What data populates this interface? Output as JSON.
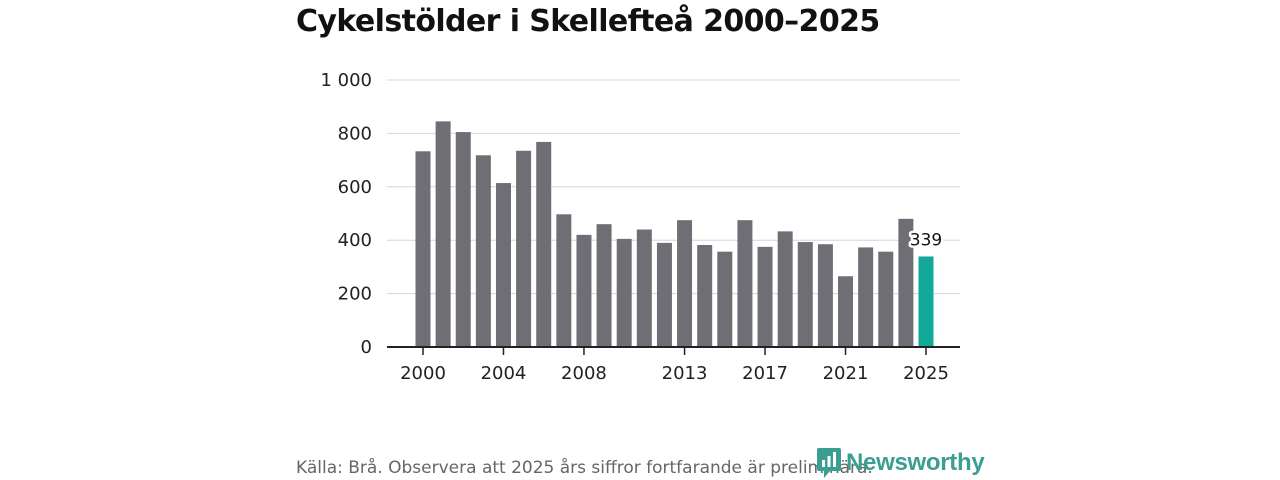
{
  "title": "Cykelstölder i Skellefteå 2000–2025",
  "source_note": "Källa: Brå. Observera att 2025 års siffror fortfarande är preliminära.",
  "brand": {
    "name": "Newsworthy",
    "icon": "newsworthy-logo-icon",
    "color": "#3a9e92"
  },
  "colors": {
    "bar": "#6f6e74",
    "highlight": "#12a89a",
    "grid": "#d6d6d6",
    "axis": "#222222"
  },
  "chart_data": {
    "type": "bar",
    "title": "Cykelstölder i Skellefteå 2000–2025",
    "xlabel": "",
    "ylabel": "",
    "categories": [
      "2000",
      "2001",
      "2002",
      "2003",
      "2004",
      "2005",
      "2006",
      "2007",
      "2008",
      "2009",
      "2010",
      "2011",
      "2012",
      "2013",
      "2014",
      "2015",
      "2016",
      "2017",
      "2018",
      "2019",
      "2020",
      "2021",
      "2022",
      "2023",
      "2024",
      "2025"
    ],
    "values": [
      733,
      845,
      805,
      718,
      614,
      735,
      768,
      497,
      420,
      460,
      405,
      440,
      390,
      475,
      382,
      357,
      475,
      375,
      433,
      393,
      385,
      265,
      373,
      357,
      480,
      339
    ],
    "highlight_index": 25,
    "data_labels": [
      {
        "index": 25,
        "text": "339"
      }
    ],
    "ylim": [
      0,
      1000
    ],
    "yticks": [
      0,
      200,
      400,
      600,
      800,
      1000
    ],
    "ytick_labels": [
      "0",
      "200",
      "400",
      "600",
      "800",
      "1 000"
    ],
    "xticks": [
      "2000",
      "2004",
      "2008",
      "2013",
      "2017",
      "2021",
      "2025"
    ],
    "grid": true,
    "legend": "none"
  }
}
